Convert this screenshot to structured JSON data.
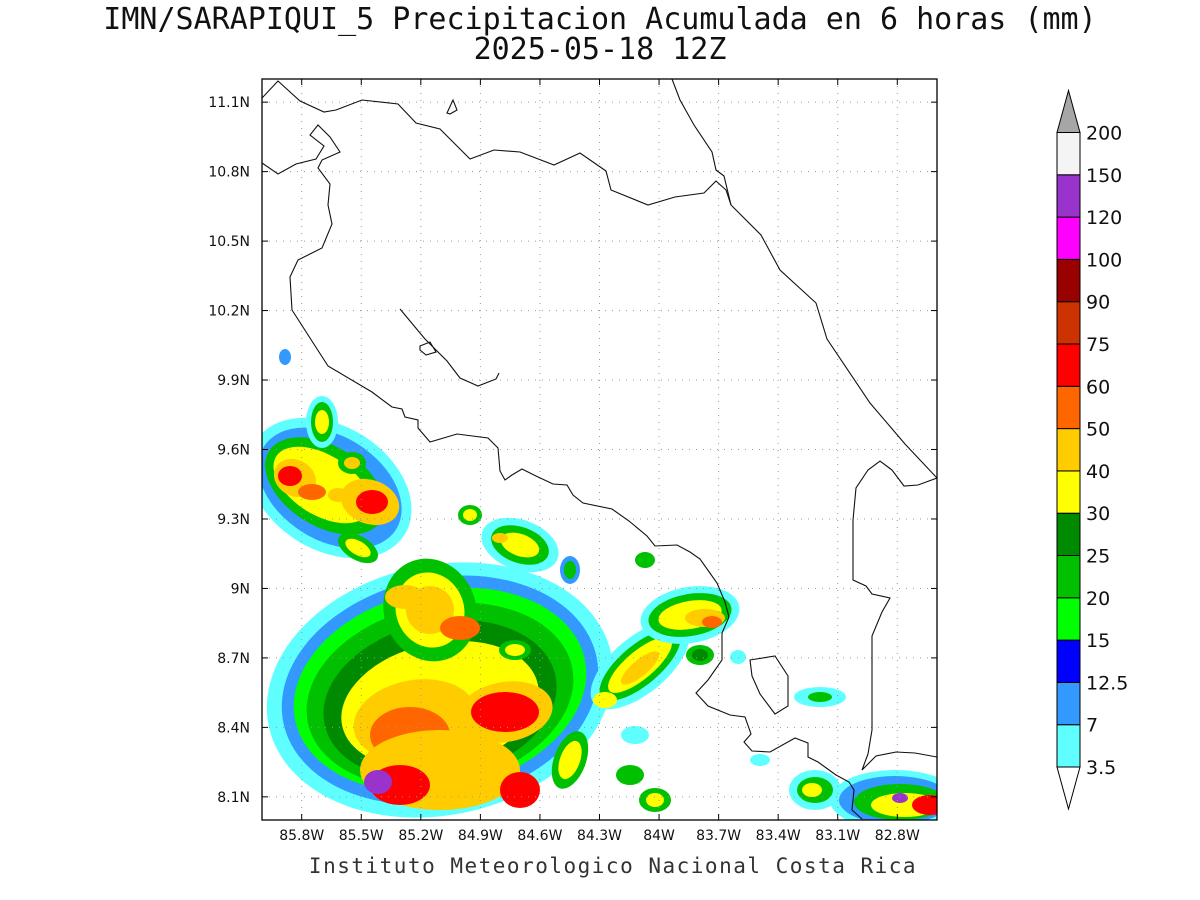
{
  "title": "IMN/SARAPIQUI_5 Precipitacion Acumulada en 6 horas (mm)",
  "subtitle": "2025-05-18 12Z",
  "footer": "Instituto Meteorologico Nacional Costa Rica",
  "map": {
    "lon_range": [
      -86.0,
      -82.6
    ],
    "lat_range": [
      8.0,
      11.2
    ],
    "lon_ticks": [
      "85.8W",
      "85.5W",
      "85.2W",
      "84.9W",
      "84.6W",
      "84.3W",
      "84W",
      "83.7W",
      "83.4W",
      "83.1W",
      "82.8W"
    ],
    "lat_ticks": [
      "11.1N",
      "10.8N",
      "10.5N",
      "10.2N",
      "9.9N",
      "9.6N",
      "9.3N",
      "9N",
      "8.7N",
      "8.4N",
      "8.1N"
    ],
    "grid": true
  },
  "colorbar": {
    "labels": [
      "3.5",
      "7",
      "12.5",
      "15",
      "20",
      "25",
      "30",
      "40",
      "50",
      "60",
      "75",
      "90",
      "100",
      "120",
      "150",
      "200"
    ],
    "colors": [
      "#5fffff",
      "#3399ff",
      "#0000ff",
      "#00ff00",
      "#00c000",
      "#008a00",
      "#ffff00",
      "#ffcc00",
      "#ff6600",
      "#ff0000",
      "#cc3300",
      "#990000",
      "#ff00ff",
      "#9933cc",
      "#f4f4f4",
      "#a6a6a6"
    ]
  }
}
